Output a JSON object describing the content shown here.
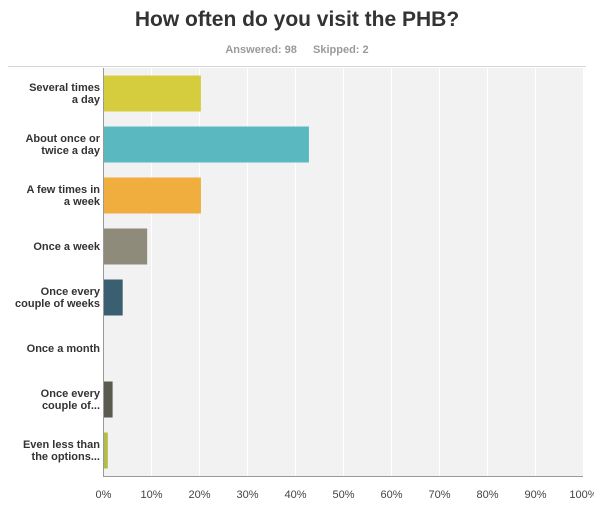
{
  "question": {
    "title": "How often do you visit the PHB?",
    "answered_label": "Answered: 98",
    "skipped_label": "Skipped: 2"
  },
  "chart_data": {
    "type": "bar",
    "orientation": "horizontal",
    "categories": [
      [
        "Several times",
        "a day"
      ],
      [
        "About once or",
        "twice a day"
      ],
      [
        "A few times in",
        "a week"
      ],
      [
        "Once a week"
      ],
      [
        "Once every",
        "couple of weeks"
      ],
      [
        "Once a month"
      ],
      [
        "Once every",
        "couple of..."
      ],
      [
        "Even less than",
        "the options..."
      ]
    ],
    "values": [
      20.4,
      42.9,
      20.4,
      9.2,
      4.1,
      0,
      2.0,
      1.0
    ],
    "colors": [
      "#d5cd3e",
      "#5ab8c1",
      "#f0ae3e",
      "#8e8b7b",
      "#3a5f70",
      "#5c6f78",
      "#5a5a4e",
      "#b4bc48"
    ],
    "xlim": [
      0,
      100
    ],
    "xticks": [
      "0%",
      "10%",
      "20%",
      "30%",
      "40%",
      "50%",
      "60%",
      "70%",
      "80%",
      "90%",
      "100%"
    ],
    "grid": true,
    "background": "#f2f2f2"
  }
}
